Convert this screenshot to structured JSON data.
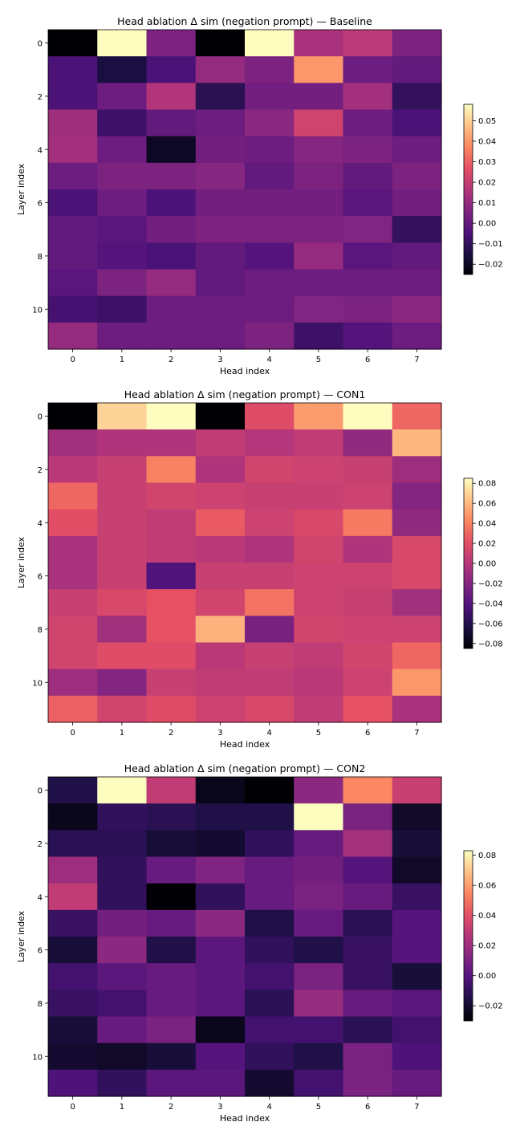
{
  "chart_data": [
    {
      "type": "heatmap",
      "title": "Head ablation Δ sim (negation prompt) — Baseline",
      "xlabel": "Head index",
      "ylabel": "Layer index",
      "x_ticks": [
        "0",
        "1",
        "2",
        "3",
        "4",
        "5",
        "6",
        "7"
      ],
      "y_ticks": [
        "0",
        "2",
        "4",
        "6",
        "8",
        "10"
      ],
      "rows": 12,
      "cols": 8,
      "vmin": -0.025,
      "vmax": 0.058,
      "colorbar_ticks": [
        0.05,
        0.04,
        0.03,
        0.02,
        0.01,
        0.0,
        -0.01,
        -0.02
      ],
      "colorbar_labels": [
        "0.05",
        "0.04",
        "0.03",
        "0.02",
        "0.01",
        "0.00",
        "−0.01",
        "−0.02"
      ],
      "values": [
        [
          -0.025,
          0.058,
          0.005,
          -0.025,
          0.058,
          0.014,
          0.018,
          0.005
        ],
        [
          -0.005,
          -0.015,
          -0.005,
          0.01,
          0.005,
          0.04,
          0.002,
          0.0
        ],
        [
          -0.005,
          0.002,
          0.016,
          -0.012,
          0.003,
          0.003,
          0.013,
          -0.01
        ],
        [
          0.012,
          -0.008,
          0.0,
          0.002,
          0.008,
          0.022,
          0.002,
          -0.005
        ],
        [
          0.013,
          0.002,
          -0.02,
          0.003,
          0.002,
          0.007,
          0.005,
          0.002
        ],
        [
          0.002,
          0.005,
          0.005,
          0.007,
          0.0,
          0.005,
          0.0,
          0.005
        ],
        [
          -0.005,
          0.002,
          -0.005,
          0.003,
          0.003,
          0.003,
          -0.002,
          0.003
        ],
        [
          0.0,
          -0.002,
          0.003,
          0.005,
          0.005,
          0.005,
          0.006,
          -0.01
        ],
        [
          0.0,
          -0.003,
          -0.005,
          0.0,
          -0.003,
          0.01,
          -0.002,
          0.0
        ],
        [
          -0.002,
          0.005,
          0.01,
          0.0,
          0.002,
          0.002,
          0.002,
          0.002
        ],
        [
          -0.006,
          -0.008,
          0.002,
          0.002,
          0.002,
          0.006,
          0.005,
          0.008
        ],
        [
          0.01,
          0.002,
          0.002,
          0.002,
          0.005,
          -0.008,
          -0.003,
          0.002
        ]
      ]
    },
    {
      "type": "heatmap",
      "title": "Head ablation Δ sim (negation prompt) — CON1",
      "xlabel": "Head index",
      "ylabel": "Layer index",
      "x_ticks": [
        "0",
        "1",
        "2",
        "3",
        "4",
        "5",
        "6",
        "7"
      ],
      "y_ticks": [
        "0",
        "2",
        "4",
        "6",
        "8",
        "10"
      ],
      "rows": 12,
      "cols": 8,
      "vmin": -0.085,
      "vmax": 0.085,
      "colorbar_ticks": [
        0.08,
        0.06,
        0.04,
        0.02,
        0.0,
        -0.02,
        -0.04,
        -0.06,
        -0.08
      ],
      "colorbar_labels": [
        "0.08",
        "0.06",
        "0.04",
        "0.02",
        "0.00",
        "−0.02",
        "−0.04",
        "−0.06",
        "−0.08"
      ],
      "values": [
        [
          -0.085,
          0.07,
          0.085,
          -0.085,
          0.018,
          0.05,
          0.085,
          0.03
        ],
        [
          -0.008,
          -0.002,
          -0.002,
          0.005,
          0.0,
          0.005,
          -0.015,
          0.06
        ],
        [
          0.002,
          0.008,
          0.04,
          -0.002,
          0.012,
          0.01,
          0.008,
          -0.01
        ],
        [
          0.03,
          0.008,
          0.012,
          0.01,
          0.008,
          0.008,
          0.01,
          -0.02
        ],
        [
          0.02,
          0.008,
          0.005,
          0.025,
          0.01,
          0.015,
          0.038,
          -0.015
        ],
        [
          -0.005,
          0.008,
          0.005,
          0.002,
          -0.002,
          0.012,
          -0.002,
          0.015
        ],
        [
          -0.005,
          0.008,
          -0.042,
          0.008,
          0.008,
          0.01,
          0.01,
          0.015
        ],
        [
          0.008,
          0.015,
          0.022,
          0.012,
          0.035,
          0.01,
          0.008,
          -0.008
        ],
        [
          0.012,
          -0.008,
          0.022,
          0.058,
          -0.025,
          0.012,
          0.01,
          0.01
        ],
        [
          0.012,
          0.018,
          0.018,
          0.002,
          0.008,
          0.005,
          0.012,
          0.03
        ],
        [
          -0.01,
          -0.02,
          0.008,
          0.005,
          0.005,
          0.002,
          0.01,
          0.048
        ],
        [
          0.028,
          0.012,
          0.018,
          0.01,
          0.015,
          0.005,
          0.022,
          -0.005
        ]
      ]
    },
    {
      "type": "heatmap",
      "title": "Head ablation Δ sim (negation prompt) — CON2",
      "xlabel": "Head index",
      "ylabel": "Layer index",
      "x_ticks": [
        "0",
        "1",
        "2",
        "3",
        "4",
        "5",
        "6",
        "7"
      ],
      "y_ticks": [
        "0",
        "2",
        "4",
        "6",
        "8",
        "10"
      ],
      "rows": 12,
      "cols": 8,
      "vmin": -0.03,
      "vmax": 0.083,
      "colorbar_ticks": [
        0.08,
        0.06,
        0.04,
        0.02,
        0.0,
        -0.02
      ],
      "colorbar_labels": [
        "0.08",
        "0.06",
        "0.04",
        "0.02",
        "0.00",
        "−0.02"
      ],
      "values": [
        [
          -0.015,
          0.083,
          0.03,
          -0.025,
          -0.03,
          0.015,
          0.055,
          0.032
        ],
        [
          -0.025,
          -0.01,
          -0.012,
          -0.015,
          -0.015,
          0.083,
          0.01,
          -0.022
        ],
        [
          -0.012,
          -0.012,
          -0.018,
          -0.02,
          -0.01,
          0.005,
          0.022,
          -0.018
        ],
        [
          0.02,
          -0.01,
          0.005,
          0.012,
          0.005,
          0.008,
          0.0,
          -0.022
        ],
        [
          0.03,
          -0.01,
          -0.03,
          -0.01,
          0.005,
          0.01,
          0.005,
          -0.008
        ],
        [
          -0.008,
          0.008,
          0.005,
          0.015,
          -0.015,
          0.005,
          -0.012,
          0.0
        ],
        [
          -0.018,
          0.015,
          -0.015,
          0.002,
          -0.01,
          -0.015,
          -0.008,
          0.0
        ],
        [
          -0.005,
          0.002,
          0.005,
          0.002,
          -0.005,
          0.01,
          -0.008,
          -0.018
        ],
        [
          -0.008,
          -0.005,
          0.005,
          0.002,
          -0.012,
          0.018,
          0.005,
          0.002
        ],
        [
          -0.018,
          0.005,
          0.01,
          -0.025,
          -0.005,
          -0.005,
          -0.012,
          -0.005
        ],
        [
          -0.02,
          -0.022,
          -0.018,
          0.0,
          -0.01,
          -0.015,
          0.01,
          -0.002
        ],
        [
          -0.002,
          -0.01,
          0.002,
          0.002,
          -0.02,
          -0.005,
          0.01,
          0.005
        ]
      ]
    }
  ]
}
